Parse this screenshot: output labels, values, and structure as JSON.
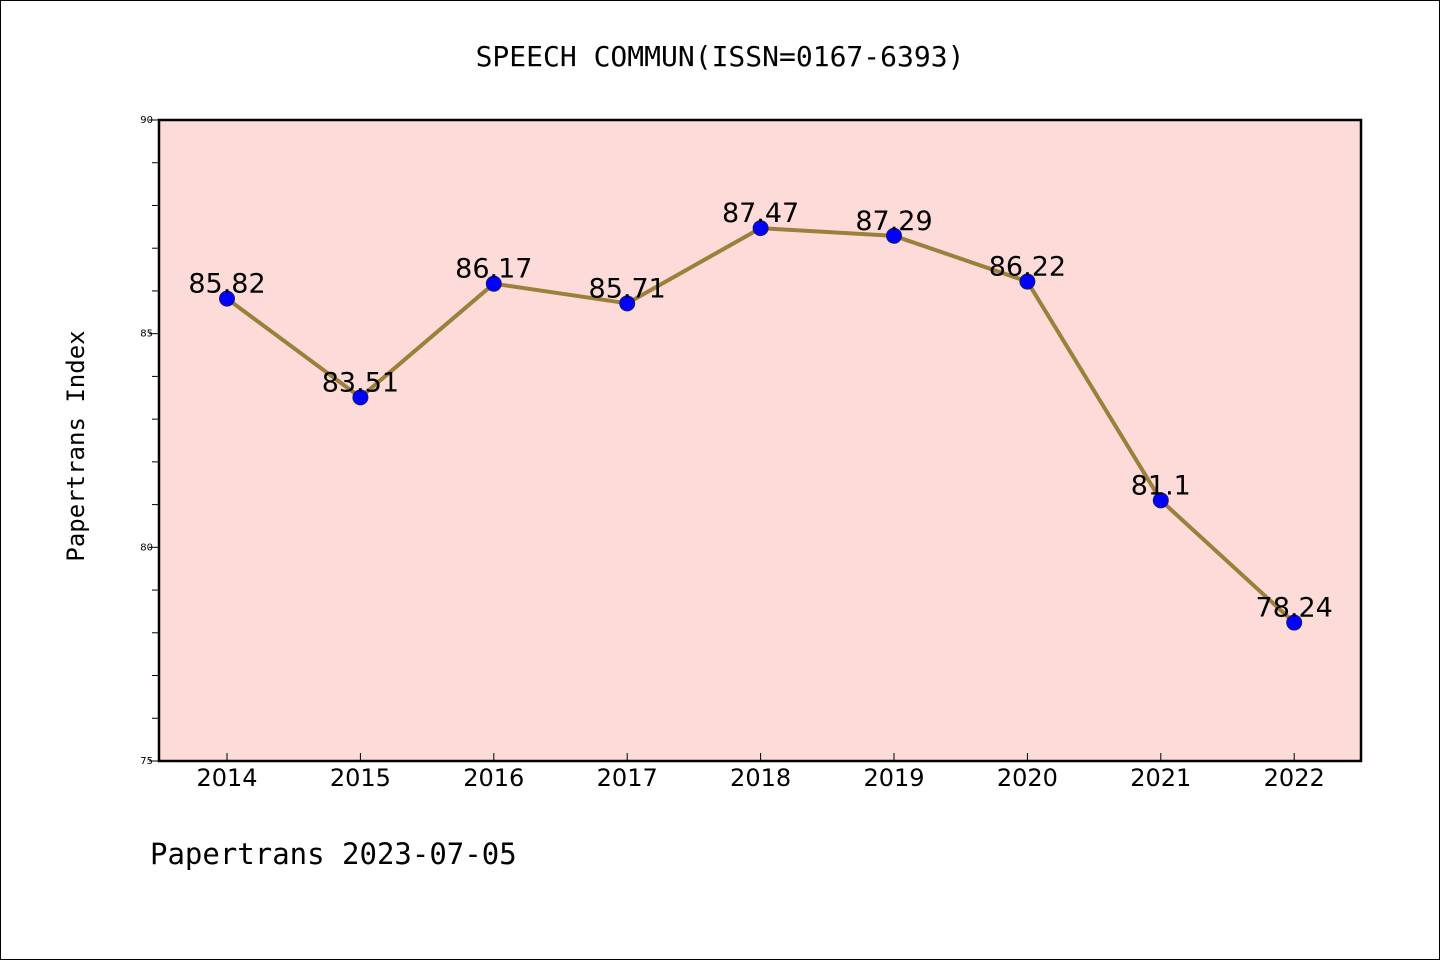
{
  "chart_data": {
    "type": "line",
    "title": "SPEECH COMMUN(ISSN=0167-6393)",
    "ylabel": "Papertrans Index",
    "xlabel": "",
    "categories": [
      "2014",
      "2015",
      "2016",
      "2017",
      "2018",
      "2019",
      "2020",
      "2021",
      "2022"
    ],
    "values": [
      85.82,
      83.51,
      86.17,
      85.71,
      87.47,
      87.29,
      86.22,
      81.1,
      78.24
    ],
    "value_labels": [
      "85.82",
      "83.51",
      "86.17",
      "85.71",
      "87.47",
      "87.29",
      "86.22",
      "81.1",
      "78.24"
    ],
    "ylim": [
      75,
      90
    ],
    "yticks": [
      75,
      80,
      85,
      90
    ],
    "grid": false,
    "colors": {
      "plot_background": "#fddbd9",
      "line": "#9b7f3b",
      "marker": "#0000ff"
    },
    "footer": "Papertrans 2023-07-05"
  }
}
